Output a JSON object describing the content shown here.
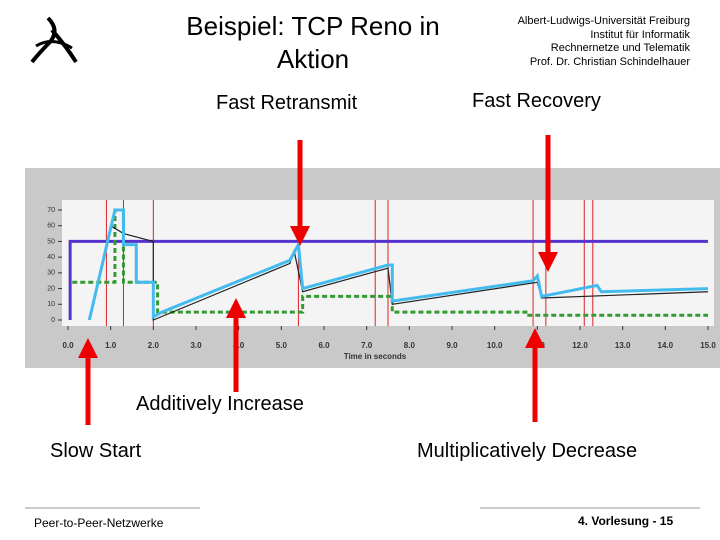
{
  "slide": {
    "title": "Beispiel: TCP Reno in Aktion",
    "institution": [
      "Albert-Ludwigs-Universität Freiburg",
      "Institut für Informatik",
      "Rechnernetze und Telematik",
      "Prof. Dr. Christian Schindelhauer"
    ],
    "annotations": {
      "fast_retransmit": "Fast Retransmit",
      "fast_recovery": "Fast Recovery",
      "additively_increase": "Additively Increase",
      "slow_start": "Slow Start",
      "multiplicatively_decrease": "Multiplicatively Decrease"
    },
    "footer_left": "Peer-to-Peer-Netzwerke",
    "footer_right": "4. Vorlesung - 15"
  },
  "chart_data": {
    "type": "line",
    "xlabel": "Time in seconds",
    "xlim": [
      0,
      15
    ],
    "ylim": [
      0,
      70
    ],
    "yticks": [
      0,
      10,
      20,
      30,
      40,
      50,
      60,
      70
    ],
    "xticks": [
      {
        "value": 0,
        "label": "0.0"
      },
      {
        "value": 1,
        "label": "1.0"
      },
      {
        "value": 2,
        "label": "2.0"
      },
      {
        "value": 3,
        "label": "3.0"
      },
      {
        "value": 4,
        "label": "4.0"
      },
      {
        "value": 5,
        "label": "5.0"
      },
      {
        "value": 6,
        "label": "6.0"
      },
      {
        "value": 7,
        "label": "7.0"
      },
      {
        "value": 8,
        "label": "8.0"
      },
      {
        "value": 9,
        "label": "9.0"
      },
      {
        "value": 10,
        "label": "10.0"
      },
      {
        "value": 11,
        "label": "11.0"
      },
      {
        "value": 12,
        "label": "12.0"
      },
      {
        "value": 13,
        "label": "13.0"
      },
      {
        "value": 14,
        "label": "14.0"
      },
      {
        "value": 15,
        "label": "15.0"
      }
    ],
    "event_lines": {
      "color": "#dd2222",
      "x": [
        0.9,
        1.3,
        2.0,
        5.4,
        7.2,
        7.5,
        10.9,
        11.2,
        12.1,
        12.3
      ]
    },
    "series": [
      {
        "color": "#5533cc",
        "dash": false,
        "x": [
          0.05,
          0.05,
          15
        ],
        "values": [
          0,
          50,
          50
        ]
      },
      {
        "color": "#339933",
        "dash": true,
        "x": [
          0.1,
          1.1,
          1.1,
          1.3,
          1.3,
          2.1,
          2.1,
          5.5,
          5.5,
          7.6,
          7.6,
          10.8,
          10.8,
          15
        ],
        "values": [
          24,
          24,
          70,
          70,
          24,
          24,
          5,
          5,
          15,
          15,
          5,
          5,
          3,
          3
        ]
      },
      {
        "color": "#222222",
        "dash": false,
        "x": [
          0.5,
          1.0,
          1.3,
          2.0,
          2.0,
          5.2,
          5.3,
          5.5,
          7.5,
          7.6,
          11.0,
          11.1,
          15
        ],
        "values": [
          0,
          60,
          55,
          50,
          0,
          36,
          44,
          18,
          33,
          10,
          24,
          14,
          18
        ]
      },
      {
        "color": "#44bbee",
        "dash": false,
        "x": [
          0.5,
          1.1,
          1.3,
          1.3,
          1.6,
          1.6,
          2.0,
          2.0,
          2.2,
          5.2,
          5.4,
          5.5,
          7.5,
          7.6,
          7.6,
          10.9,
          11.0,
          11.1,
          12.4,
          12.5,
          15
        ],
        "values": [
          0,
          70,
          70,
          48,
          48,
          24,
          24,
          2,
          5,
          38,
          48,
          20,
          35,
          35,
          12,
          25,
          28,
          15,
          22,
          18,
          20
        ]
      }
    ]
  }
}
